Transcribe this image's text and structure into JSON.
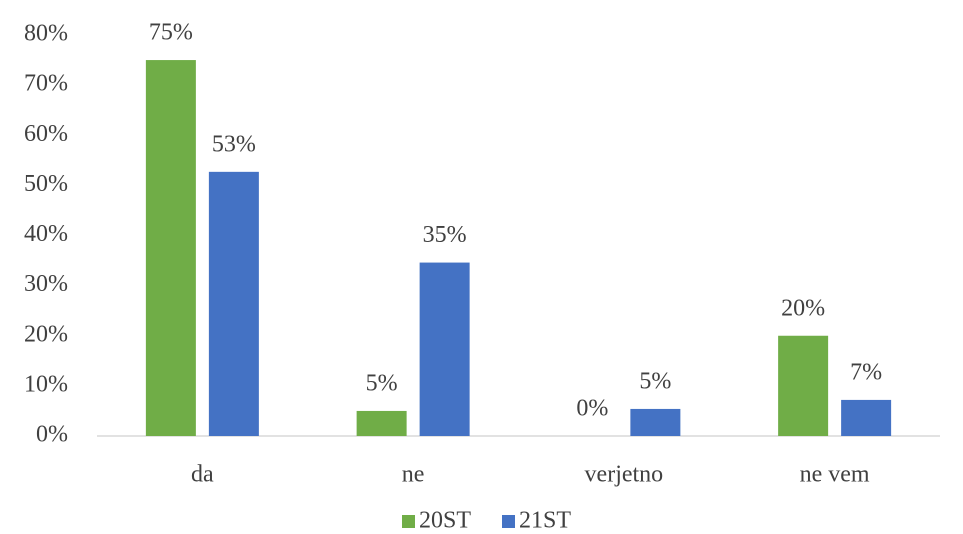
{
  "chart_data": {
    "type": "bar",
    "categories": [
      "da",
      "ne",
      "verjetno",
      "ne vem"
    ],
    "series": [
      {
        "name": "20ST",
        "color": "#70ad47",
        "values": [
          75,
          5,
          0,
          20
        ],
        "value_labels": [
          "75%",
          "5%",
          "0%",
          "20%"
        ]
      },
      {
        "name": "21ST",
        "color": "#4472c4",
        "values": [
          52.7,
          34.6,
          5.4,
          7.2
        ],
        "value_labels": [
          "53%",
          "35%",
          "5%",
          "7%"
        ]
      }
    ],
    "ylim": [
      0,
      80
    ],
    "yticks": [
      {
        "value": 0,
        "label": "0%"
      },
      {
        "value": 10,
        "label": "10%"
      },
      {
        "value": 20,
        "label": "20%"
      },
      {
        "value": 30,
        "label": "30%"
      },
      {
        "value": 40,
        "label": "40%"
      },
      {
        "value": 50,
        "label": "50%"
      },
      {
        "value": 60,
        "label": "60%"
      },
      {
        "value": 70,
        "label": "70%"
      },
      {
        "value": 80,
        "label": "80%"
      }
    ],
    "grid": false,
    "legend": "bottom"
  }
}
